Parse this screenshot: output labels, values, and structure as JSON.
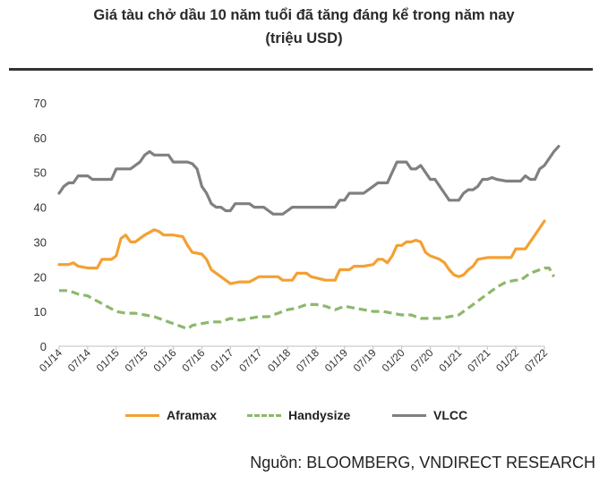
{
  "chart_data": {
    "type": "line",
    "title_line1": "Giá tàu chở dầu 10 năm tuổi đã tăng đáng kể trong năm nay",
    "title_line2": "(triệu USD)",
    "source": "Nguồn: BLOOMBERG, VNDIRECT RESEARCH",
    "ylim": [
      0,
      70
    ],
    "yticks": [
      0,
      10,
      20,
      30,
      40,
      50,
      60,
      70
    ],
    "x_tick_labels": [
      "01/14",
      "07/14",
      "01/15",
      "07/15",
      "01/16",
      "07/16",
      "01/17",
      "07/17",
      "01/18",
      "07/18",
      "01/19",
      "07/19",
      "01/20",
      "07/20",
      "01/21",
      "07/21",
      "01/22",
      "07/22"
    ],
    "x_unit": "month index from 01/14",
    "grid": false,
    "legend_position": "bottom",
    "series": [
      {
        "name": "Aframax",
        "color": "#F4A032",
        "style": "solid",
        "points": [
          [
            0,
            23.5
          ],
          [
            2,
            23.5
          ],
          [
            3,
            24
          ],
          [
            4,
            23
          ],
          [
            6,
            22.5
          ],
          [
            8,
            22.5
          ],
          [
            9,
            25
          ],
          [
            11,
            25
          ],
          [
            12,
            26
          ],
          [
            13,
            31
          ],
          [
            14,
            32
          ],
          [
            15,
            30
          ],
          [
            16,
            30
          ],
          [
            18,
            32
          ],
          [
            20,
            33.5
          ],
          [
            21,
            33
          ],
          [
            22,
            32
          ],
          [
            24,
            32
          ],
          [
            26,
            31.5
          ],
          [
            27,
            29
          ],
          [
            28,
            27
          ],
          [
            30,
            26.5
          ],
          [
            31,
            25
          ],
          [
            32,
            22
          ],
          [
            33,
            21
          ],
          [
            35,
            19
          ],
          [
            36,
            18
          ],
          [
            38,
            18.5
          ],
          [
            40,
            18.5
          ],
          [
            42,
            20
          ],
          [
            44,
            20
          ],
          [
            46,
            20
          ],
          [
            47,
            19
          ],
          [
            49,
            19
          ],
          [
            50,
            21
          ],
          [
            52,
            21
          ],
          [
            53,
            20
          ],
          [
            56,
            19
          ],
          [
            57,
            19
          ],
          [
            58,
            19
          ],
          [
            59,
            22
          ],
          [
            61,
            22
          ],
          [
            62,
            23
          ],
          [
            64,
            23
          ],
          [
            66,
            23.5
          ],
          [
            67,
            25
          ],
          [
            68,
            25
          ],
          [
            69,
            24
          ],
          [
            70,
            26
          ],
          [
            71,
            29
          ],
          [
            72,
            29
          ],
          [
            73,
            30
          ],
          [
            74,
            30
          ],
          [
            75,
            30.5
          ],
          [
            76,
            30
          ],
          [
            77,
            27
          ],
          [
            78,
            26
          ],
          [
            79,
            25.5
          ],
          [
            80,
            25
          ],
          [
            81,
            24
          ],
          [
            82,
            22
          ],
          [
            83,
            20.5
          ],
          [
            84,
            20
          ],
          [
            85,
            20.5
          ],
          [
            86,
            22
          ],
          [
            87,
            23
          ],
          [
            88,
            25
          ],
          [
            90,
            25.5
          ],
          [
            95,
            25.5
          ],
          [
            96,
            28
          ],
          [
            98,
            28
          ],
          [
            100,
            32
          ],
          [
            101,
            34
          ],
          [
            102,
            36
          ]
        ]
      },
      {
        "name": "Handysize",
        "color": "#8DB86B",
        "style": "dashed",
        "points": [
          [
            0,
            16
          ],
          [
            2,
            16
          ],
          [
            4,
            15
          ],
          [
            6,
            14.5
          ],
          [
            8,
            13
          ],
          [
            10,
            11.5
          ],
          [
            12,
            10
          ],
          [
            14,
            9.5
          ],
          [
            16,
            9.5
          ],
          [
            18,
            9
          ],
          [
            20,
            8.5
          ],
          [
            22,
            7.5
          ],
          [
            24,
            6.5
          ],
          [
            26,
            5.5
          ],
          [
            27,
            5
          ],
          [
            28,
            6
          ],
          [
            30,
            6.5
          ],
          [
            32,
            7
          ],
          [
            34,
            7
          ],
          [
            36,
            8
          ],
          [
            38,
            7.5
          ],
          [
            40,
            8
          ],
          [
            42,
            8.5
          ],
          [
            44,
            8.5
          ],
          [
            46,
            9.5
          ],
          [
            48,
            10.5
          ],
          [
            50,
            11
          ],
          [
            52,
            12
          ],
          [
            54,
            12
          ],
          [
            56,
            11.5
          ],
          [
            58,
            10.5
          ],
          [
            60,
            11.5
          ],
          [
            62,
            11
          ],
          [
            64,
            10.5
          ],
          [
            66,
            10
          ],
          [
            68,
            10
          ],
          [
            70,
            9.5
          ],
          [
            72,
            9
          ],
          [
            74,
            9
          ],
          [
            76,
            8
          ],
          [
            78,
            8
          ],
          [
            80,
            8
          ],
          [
            82,
            8.5
          ],
          [
            84,
            9
          ],
          [
            86,
            11
          ],
          [
            88,
            13
          ],
          [
            90,
            15
          ],
          [
            92,
            17
          ],
          [
            94,
            18.5
          ],
          [
            96,
            19
          ],
          [
            97,
            19
          ],
          [
            99,
            21
          ],
          [
            101,
            22
          ],
          [
            102,
            22.5
          ],
          [
            103,
            22.5
          ],
          [
            104,
            20
          ]
        ]
      },
      {
        "name": "VLCC",
        "color": "#808080",
        "style": "solid",
        "points": [
          [
            0,
            44
          ],
          [
            1,
            46
          ],
          [
            2,
            47
          ],
          [
            3,
            47
          ],
          [
            4,
            49
          ],
          [
            6,
            49
          ],
          [
            7,
            48
          ],
          [
            11,
            48
          ],
          [
            12,
            51
          ],
          [
            15,
            51
          ],
          [
            16,
            52
          ],
          [
            17,
            53
          ],
          [
            18,
            55
          ],
          [
            19,
            56
          ],
          [
            20,
            55
          ],
          [
            23,
            55
          ],
          [
            24,
            53
          ],
          [
            27,
            53
          ],
          [
            28,
            52.5
          ],
          [
            29,
            51
          ],
          [
            30,
            46
          ],
          [
            31,
            44
          ],
          [
            32,
            41
          ],
          [
            33,
            40
          ],
          [
            34,
            40
          ],
          [
            35,
            39
          ],
          [
            36,
            39
          ],
          [
            37,
            41
          ],
          [
            40,
            41
          ],
          [
            41,
            40
          ],
          [
            43,
            40
          ],
          [
            44,
            39
          ],
          [
            45,
            38
          ],
          [
            47,
            38
          ],
          [
            48,
            39
          ],
          [
            49,
            40
          ],
          [
            58,
            40
          ],
          [
            59,
            42
          ],
          [
            60,
            42
          ],
          [
            61,
            44
          ],
          [
            64,
            44
          ],
          [
            66,
            46
          ],
          [
            67,
            47
          ],
          [
            69,
            47
          ],
          [
            70,
            50
          ],
          [
            71,
            53
          ],
          [
            73,
            53
          ],
          [
            74,
            51
          ],
          [
            75,
            51
          ],
          [
            76,
            52
          ],
          [
            77,
            50
          ],
          [
            78,
            48
          ],
          [
            79,
            48
          ],
          [
            80,
            46
          ],
          [
            81,
            44
          ],
          [
            82,
            42
          ],
          [
            84,
            42
          ],
          [
            85,
            44
          ],
          [
            86,
            45
          ],
          [
            87,
            45
          ],
          [
            88,
            46
          ],
          [
            89,
            48
          ],
          [
            90,
            48
          ],
          [
            91,
            48.5
          ],
          [
            92,
            48
          ],
          [
            94,
            47.5
          ],
          [
            97,
            47.5
          ],
          [
            98,
            49
          ],
          [
            99,
            48
          ],
          [
            100,
            48
          ],
          [
            101,
            51
          ],
          [
            102,
            52
          ],
          [
            103,
            54
          ],
          [
            104,
            56
          ],
          [
            105,
            57.5
          ]
        ]
      }
    ]
  }
}
